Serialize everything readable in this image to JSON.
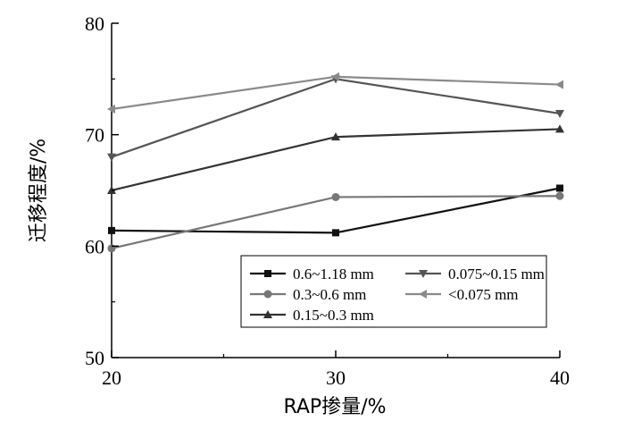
{
  "chart_data": {
    "type": "line",
    "xlabel": "RAP掺量/%",
    "ylabel": "迁移程度/%",
    "x": [
      20,
      30,
      40
    ],
    "xlim": [
      20,
      40
    ],
    "ylim": [
      50,
      80
    ],
    "xticks": [
      20,
      30,
      40
    ],
    "yticks": [
      50,
      60,
      70,
      80
    ],
    "legend_position": "bottom-right",
    "series": [
      {
        "name": "0.6~1.18 mm",
        "values": [
          61.4,
          61.2,
          65.2
        ],
        "marker": "square",
        "color": "#111111"
      },
      {
        "name": "0.3~0.6 mm",
        "values": [
          59.8,
          64.4,
          64.5
        ],
        "marker": "circle",
        "color": "#777777"
      },
      {
        "name": "0.15~0.3 mm",
        "values": [
          65.0,
          69.8,
          70.5
        ],
        "marker": "triangle-up",
        "color": "#333333"
      },
      {
        "name": "0.075~0.15 mm",
        "values": [
          68.0,
          75.0,
          71.9
        ],
        "marker": "triangle-down",
        "color": "#555555"
      },
      {
        "name": "<0.075 mm",
        "values": [
          72.3,
          75.2,
          74.5
        ],
        "marker": "triangle-left",
        "color": "#8a8a8a"
      }
    ]
  }
}
